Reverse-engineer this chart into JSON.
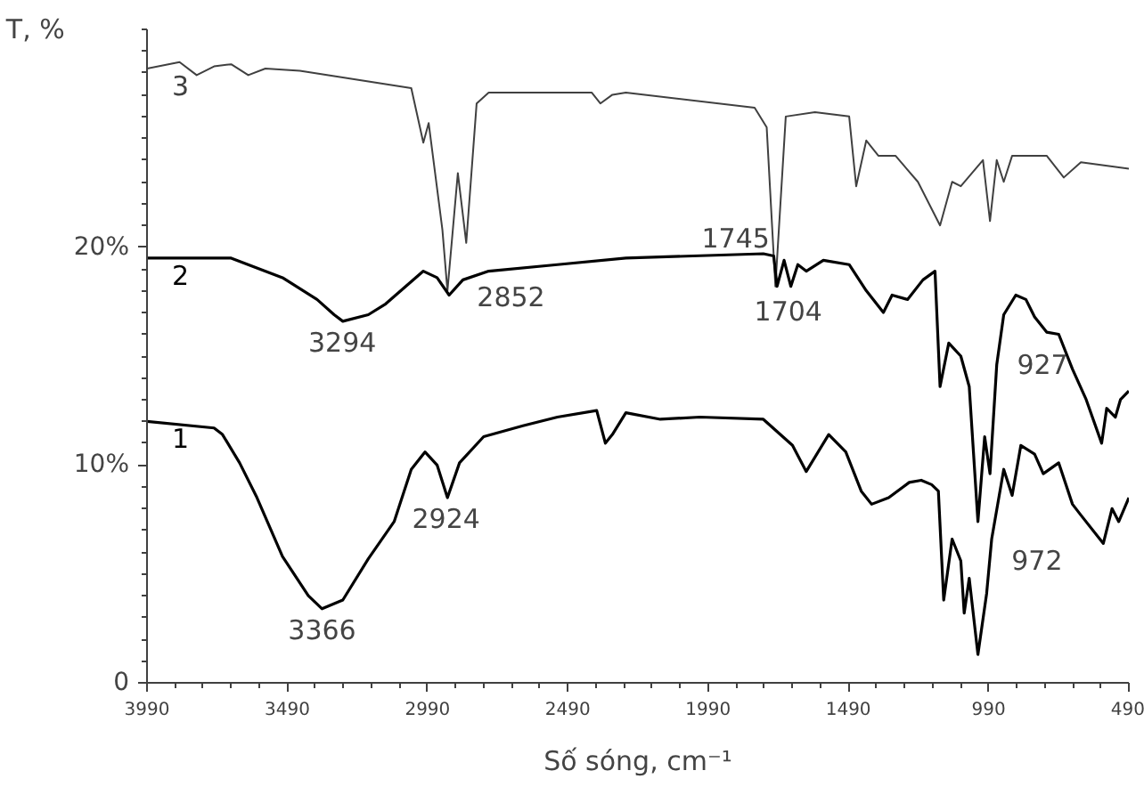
{
  "chart_data": {
    "type": "line",
    "xlabel": "Số sóng, cm⁻¹",
    "ylabel": "T, %",
    "xlim": [
      3990,
      490
    ],
    "xticks": [
      3990,
      3490,
      2990,
      2490,
      1990,
      1490,
      990,
      490
    ],
    "ylim": [
      0,
      30
    ],
    "yticks": [
      0,
      {
        "value": 10,
        "label": "10%"
      },
      {
        "value": 20,
        "label": "20%"
      }
    ],
    "grid": false,
    "marker": "none",
    "line_style": "solid",
    "series": [
      {
        "name": "3",
        "color": "#404040",
        "x": [
          3990,
          3874,
          3813,
          3751,
          3690,
          3629,
          3568,
          3445,
          3048,
          3005,
          2986,
          2937,
          2919,
          2882,
          2852,
          2815,
          2772,
          2405,
          2374,
          2331,
          2283,
          1824,
          1781,
          1750,
          1713,
          1609,
          1487,
          1462,
          1426,
          1383,
          1322,
          1242,
          1163,
          1120,
          1089,
          1010,
          985,
          961,
          936,
          906,
          783,
          722,
          661,
          490
        ],
        "values": [
          28.2,
          28.5,
          27.9,
          28.3,
          28.4,
          27.9,
          28.2,
          28.1,
          27.3,
          24.8,
          25.7,
          20.8,
          18.0,
          23.4,
          20.2,
          26.6,
          27.1,
          27.1,
          26.6,
          27.0,
          27.1,
          26.4,
          25.5,
          18.2,
          26.0,
          26.2,
          26.0,
          22.8,
          24.9,
          24.2,
          24.2,
          23.0,
          21.0,
          23.0,
          22.8,
          24.0,
          21.2,
          24.0,
          23.0,
          24.2,
          24.2,
          23.2,
          23.9,
          23.6
        ]
      },
      {
        "name": "2",
        "color": "#000000",
        "x": [
          3990,
          3690,
          3507,
          3384,
          3323,
          3292,
          3201,
          3139,
          3005,
          2956,
          2913,
          2864,
          2772,
          2527,
          2283,
          1793,
          1756,
          1744,
          1719,
          1695,
          1670,
          1640,
          1579,
          1487,
          1426,
          1365,
          1334,
          1279,
          1224,
          1181,
          1163,
          1132,
          1089,
          1059,
          1028,
          1004,
          985,
          961,
          936,
          893,
          857,
          826,
          783,
          740,
          691,
          642,
          587,
          569,
          538,
          520,
          490
        ],
        "values": [
          19.5,
          19.5,
          18.6,
          17.6,
          16.9,
          16.6,
          16.9,
          17.4,
          18.9,
          18.6,
          17.8,
          18.5,
          18.9,
          19.2,
          19.5,
          19.7,
          19.6,
          18.2,
          19.4,
          18.2,
          19.2,
          18.9,
          19.4,
          19.2,
          18.0,
          17.0,
          17.8,
          17.6,
          18.5,
          18.9,
          13.6,
          15.6,
          15.0,
          13.6,
          7.4,
          11.3,
          9.6,
          14.6,
          16.9,
          17.8,
          17.6,
          16.8,
          16.1,
          16.0,
          14.4,
          13.0,
          11.0,
          12.6,
          12.2,
          13.0,
          13.4
        ]
      },
      {
        "name": "1",
        "color": "#000000",
        "x": [
          3990,
          3751,
          3721,
          3660,
          3598,
          3507,
          3415,
          3366,
          3292,
          3201,
          3109,
          3048,
          2999,
          2956,
          2919,
          2876,
          2790,
          2650,
          2527,
          2387,
          2356,
          2331,
          2283,
          2160,
          2019,
          1793,
          1689,
          1640,
          1560,
          1499,
          1444,
          1407,
          1346,
          1273,
          1230,
          1193,
          1169,
          1150,
          1120,
          1089,
          1077,
          1059,
          1028,
          997,
          979,
          936,
          906,
          875,
          826,
          795,
          740,
          691,
          661,
          581,
          550,
          526,
          490
        ],
        "values": [
          12.0,
          11.7,
          11.4,
          10.1,
          8.5,
          5.8,
          4.0,
          3.4,
          3.8,
          5.7,
          7.4,
          9.8,
          10.6,
          10.0,
          8.5,
          10.1,
          11.3,
          11.8,
          12.2,
          12.5,
          11.0,
          11.4,
          12.4,
          12.1,
          12.2,
          12.1,
          10.9,
          9.7,
          11.4,
          10.6,
          8.8,
          8.2,
          8.5,
          9.2,
          9.3,
          9.1,
          8.8,
          3.8,
          6.6,
          5.6,
          3.2,
          4.8,
          1.3,
          4.1,
          6.6,
          9.8,
          8.6,
          10.9,
          10.5,
          9.6,
          10.1,
          8.2,
          7.7,
          6.4,
          8.0,
          7.4,
          8.5
        ]
      }
    ],
    "annotations": [
      {
        "text": "3366",
        "x": 3366,
        "y": 3.4
      },
      {
        "text": "2924",
        "x": 2924,
        "y": 8.5
      },
      {
        "text": "3294",
        "x": 3294,
        "y": 16.6
      },
      {
        "text": "2852",
        "x": 2852,
        "y": 18.5
      },
      {
        "text": "1745",
        "x": 1745,
        "y": 18.2
      },
      {
        "text": "1704",
        "x": 1704,
        "y": 18.2
      },
      {
        "text": "927",
        "x": 927,
        "y": 16.9
      },
      {
        "text": "972",
        "x": 972,
        "y": 6.6
      }
    ]
  }
}
